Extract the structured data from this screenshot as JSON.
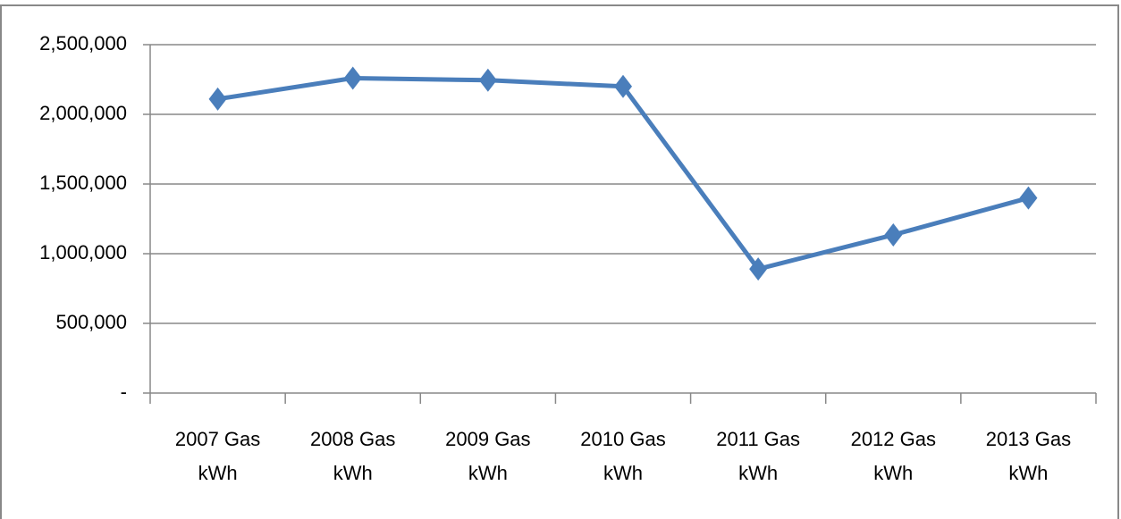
{
  "chart_data": {
    "type": "line",
    "categories": [
      "2007 Gas kWh",
      "2008 Gas kWh",
      "2009 Gas kWh",
      "2010 Gas kWh",
      "2011 Gas kWh",
      "2012 Gas kWh",
      "2013 Gas kWh"
    ],
    "values": [
      2110000,
      2260000,
      2245000,
      2200000,
      890000,
      1135000,
      1400000
    ],
    "color": "#4a7ebb",
    "ylim": [
      0,
      2500000
    ],
    "yticks": [
      {
        "value": 0,
        "label": "-"
      },
      {
        "value": 500000,
        "label": "500,000"
      },
      {
        "value": 1000000,
        "label": "1,000,000"
      },
      {
        "value": 1500000,
        "label": "1,500,000"
      },
      {
        "value": 2000000,
        "label": "2,000,000"
      },
      {
        "value": 2500000,
        "label": "2,500,000"
      }
    ],
    "grid": true
  }
}
